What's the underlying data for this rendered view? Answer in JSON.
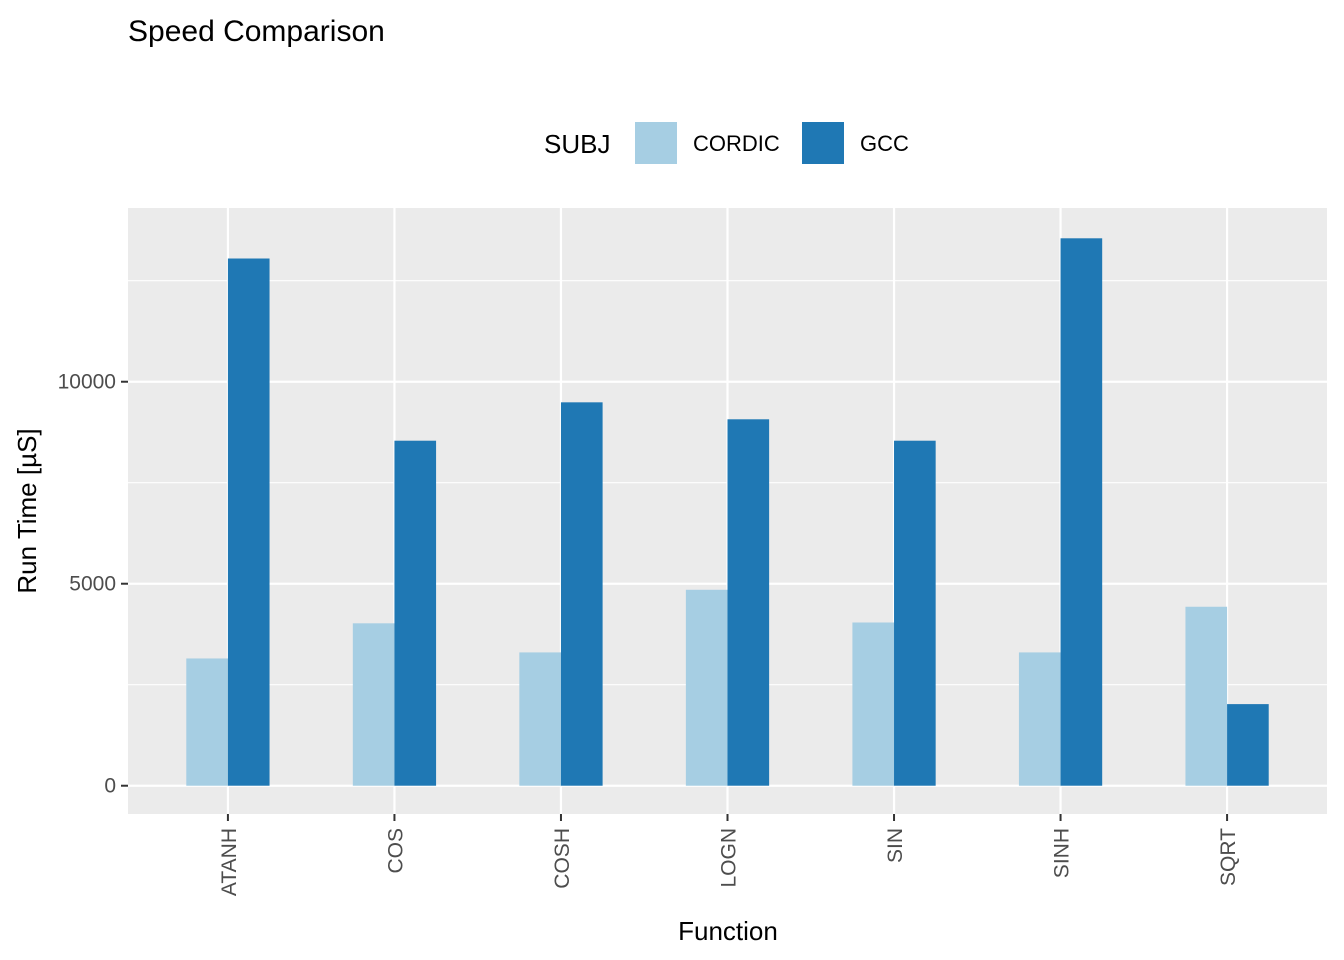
{
  "chart_data": {
    "type": "bar",
    "title": "Speed Comparison",
    "xlabel": "Function",
    "ylabel": "Run Time [µS]",
    "categories": [
      "ATANH",
      "COS",
      "COSH",
      "LOGN",
      "SIN",
      "SINH",
      "SQRT"
    ],
    "series": [
      {
        "name": "CORDIC",
        "color": "#a6cee3",
        "values": [
          3150,
          4020,
          3300,
          4850,
          4040,
          3300,
          4430
        ]
      },
      {
        "name": "GCC",
        "color": "#1f78b4",
        "values": [
          13050,
          8540,
          9490,
          9070,
          8540,
          13550,
          2020
        ]
      }
    ],
    "ylim": [
      -700,
      14300
    ],
    "yticks": [
      0,
      5000,
      10000
    ],
    "ytick_labels": [
      "0",
      "5000",
      "10000"
    ],
    "legend": {
      "title": "SUBJ",
      "position": "top"
    },
    "grid": true,
    "panel_color": "#ebebeb",
    "grid_color": "#ffffff"
  }
}
